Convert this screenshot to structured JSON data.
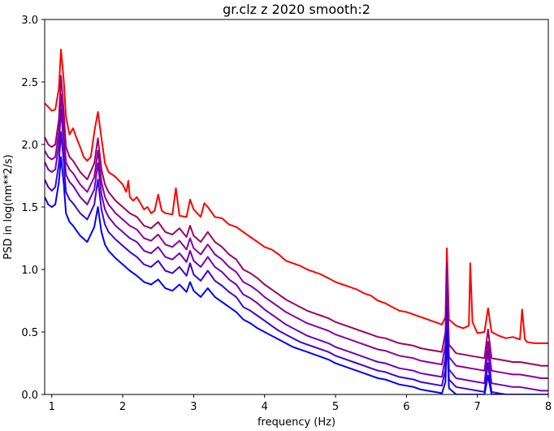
{
  "chart_data": {
    "type": "line",
    "title": "gr.clz z 2020 smooth:2",
    "xlabel": "frequency (Hz)",
    "ylabel": "PSD in log(nm**2/s)",
    "xlim": [
      0.9,
      8.0
    ],
    "ylim": [
      0.0,
      3.0
    ],
    "xticks": [
      1,
      2,
      3,
      4,
      5,
      6,
      7,
      8
    ],
    "xtick_labels": [
      "1",
      "2",
      "3",
      "4",
      "5",
      "6",
      "7",
      "8"
    ],
    "yticks": [
      0.0,
      0.5,
      1.0,
      1.5,
      2.0,
      2.5,
      3.0
    ],
    "ytick_labels": [
      "0.0",
      "0.5",
      "1.0",
      "1.5",
      "2.0",
      "2.5",
      "3.0"
    ],
    "grid": false,
    "legend": "none",
    "series": [
      {
        "color": "#ff0000",
        "x": [
          0.9,
          0.95,
          1.0,
          1.05,
          1.1,
          1.13,
          1.17,
          1.2,
          1.25,
          1.3,
          1.35,
          1.4,
          1.45,
          1.5,
          1.55,
          1.6,
          1.65,
          1.7,
          1.75,
          1.8,
          1.9,
          2.0,
          2.05,
          2.08,
          2.1,
          2.15,
          2.2,
          2.3,
          2.35,
          2.4,
          2.45,
          2.5,
          2.55,
          2.6,
          2.7,
          2.75,
          2.8,
          2.9,
          2.95,
          3.0,
          3.1,
          3.15,
          3.2,
          3.3,
          3.4,
          3.5,
          3.6,
          3.7,
          3.8,
          3.9,
          4.0,
          4.1,
          4.2,
          4.3,
          4.4,
          4.5,
          4.6,
          4.7,
          4.8,
          4.9,
          5.0,
          5.1,
          5.2,
          5.3,
          5.4,
          5.5,
          5.6,
          5.7,
          5.8,
          5.9,
          6.0,
          6.1,
          6.2,
          6.3,
          6.4,
          6.5,
          6.55,
          6.57,
          6.6,
          6.7,
          6.8,
          6.88,
          6.9,
          6.93,
          7.0,
          7.1,
          7.15,
          7.2,
          7.3,
          7.4,
          7.5,
          7.6,
          7.63,
          7.67,
          7.7,
          7.8,
          7.9,
          8.0
        ],
        "y": [
          2.33,
          2.3,
          2.27,
          2.28,
          2.45,
          2.76,
          2.5,
          2.22,
          2.08,
          2.13,
          2.05,
          1.98,
          1.9,
          1.87,
          1.9,
          2.1,
          2.26,
          2.05,
          1.85,
          1.78,
          1.74,
          1.68,
          1.62,
          1.71,
          1.58,
          1.55,
          1.58,
          1.48,
          1.5,
          1.45,
          1.47,
          1.6,
          1.47,
          1.45,
          1.44,
          1.65,
          1.43,
          1.42,
          1.56,
          1.48,
          1.42,
          1.53,
          1.5,
          1.42,
          1.41,
          1.36,
          1.34,
          1.3,
          1.26,
          1.22,
          1.18,
          1.16,
          1.12,
          1.07,
          1.05,
          1.03,
          1.0,
          0.98,
          0.96,
          0.93,
          0.9,
          0.88,
          0.86,
          0.84,
          0.81,
          0.79,
          0.75,
          0.73,
          0.7,
          0.67,
          0.66,
          0.64,
          0.62,
          0.6,
          0.58,
          0.56,
          0.62,
          1.17,
          0.6,
          0.55,
          0.53,
          0.55,
          1.05,
          0.58,
          0.49,
          0.5,
          0.69,
          0.5,
          0.47,
          0.45,
          0.46,
          0.44,
          0.68,
          0.44,
          0.42,
          0.41,
          0.41,
          0.41
        ]
      },
      {
        "color": "#a00060",
        "x": [
          0.9,
          0.95,
          1.0,
          1.05,
          1.1,
          1.13,
          1.17,
          1.2,
          1.25,
          1.3,
          1.4,
          1.5,
          1.6,
          1.65,
          1.7,
          1.75,
          1.8,
          1.9,
          2.0,
          2.1,
          2.2,
          2.3,
          2.4,
          2.5,
          2.6,
          2.7,
          2.8,
          2.9,
          2.95,
          3.0,
          3.1,
          3.2,
          3.3,
          3.4,
          3.5,
          3.6,
          3.7,
          3.8,
          3.9,
          4.0,
          4.1,
          4.2,
          4.3,
          4.4,
          4.5,
          4.6,
          4.7,
          4.8,
          4.9,
          5.0,
          5.1,
          5.2,
          5.3,
          5.4,
          5.5,
          5.6,
          5.7,
          5.8,
          5.9,
          6.0,
          6.1,
          6.2,
          6.3,
          6.4,
          6.5,
          6.55,
          6.57,
          6.6,
          6.7,
          6.8,
          6.9,
          7.0,
          7.1,
          7.15,
          7.2,
          7.3,
          7.4,
          7.5,
          7.6,
          7.7,
          7.8,
          7.9,
          8.0
        ],
        "y": [
          2.06,
          2.0,
          1.98,
          2.0,
          2.2,
          2.55,
          2.25,
          1.98,
          1.9,
          1.87,
          1.78,
          1.72,
          1.85,
          2.05,
          1.8,
          1.68,
          1.62,
          1.55,
          1.5,
          1.45,
          1.42,
          1.35,
          1.33,
          1.38,
          1.3,
          1.28,
          1.33,
          1.26,
          1.35,
          1.27,
          1.22,
          1.3,
          1.22,
          1.18,
          1.12,
          1.08,
          1.0,
          0.97,
          0.93,
          0.88,
          0.84,
          0.8,
          0.76,
          0.73,
          0.7,
          0.67,
          0.65,
          0.63,
          0.61,
          0.58,
          0.56,
          0.54,
          0.52,
          0.5,
          0.48,
          0.46,
          0.45,
          0.43,
          0.41,
          0.4,
          0.39,
          0.37,
          0.36,
          0.35,
          0.34,
          0.5,
          1.05,
          0.4,
          0.33,
          0.32,
          0.31,
          0.3,
          0.29,
          0.52,
          0.29,
          0.28,
          0.27,
          0.26,
          0.26,
          0.25,
          0.24,
          0.23,
          0.23
        ]
      },
      {
        "color": "#8a00a0",
        "x": [
          0.9,
          0.95,
          1.0,
          1.05,
          1.1,
          1.13,
          1.17,
          1.2,
          1.25,
          1.3,
          1.4,
          1.5,
          1.6,
          1.65,
          1.7,
          1.75,
          1.8,
          1.9,
          2.0,
          2.1,
          2.2,
          2.3,
          2.4,
          2.5,
          2.6,
          2.7,
          2.8,
          2.9,
          2.95,
          3.0,
          3.1,
          3.2,
          3.3,
          3.4,
          3.5,
          3.6,
          3.7,
          3.8,
          3.9,
          4.0,
          4.1,
          4.2,
          4.3,
          4.4,
          4.5,
          4.6,
          4.7,
          4.8,
          4.9,
          5.0,
          5.1,
          5.2,
          5.3,
          5.4,
          5.5,
          5.6,
          5.7,
          5.8,
          5.9,
          6.0,
          6.1,
          6.2,
          6.3,
          6.4,
          6.5,
          6.55,
          6.57,
          6.6,
          6.7,
          6.8,
          6.9,
          7.0,
          7.1,
          7.15,
          7.2,
          7.3,
          7.4,
          7.5,
          7.6,
          7.7,
          7.8,
          7.9,
          8.0
        ],
        "y": [
          1.95,
          1.9,
          1.88,
          1.9,
          2.1,
          2.4,
          2.1,
          1.86,
          1.8,
          1.77,
          1.68,
          1.62,
          1.74,
          1.95,
          1.7,
          1.58,
          1.52,
          1.45,
          1.4,
          1.35,
          1.32,
          1.25,
          1.23,
          1.28,
          1.2,
          1.18,
          1.23,
          1.16,
          1.25,
          1.17,
          1.12,
          1.2,
          1.12,
          1.08,
          1.02,
          0.98,
          0.9,
          0.87,
          0.83,
          0.78,
          0.74,
          0.7,
          0.66,
          0.63,
          0.6,
          0.57,
          0.55,
          0.53,
          0.51,
          0.48,
          0.46,
          0.44,
          0.42,
          0.4,
          0.38,
          0.36,
          0.35,
          0.33,
          0.31,
          0.3,
          0.29,
          0.27,
          0.26,
          0.25,
          0.24,
          0.4,
          0.95,
          0.3,
          0.23,
          0.22,
          0.21,
          0.2,
          0.19,
          0.42,
          0.19,
          0.18,
          0.17,
          0.16,
          0.16,
          0.15,
          0.14,
          0.13,
          0.13
        ]
      },
      {
        "color": "#7000b8",
        "x": [
          0.9,
          0.95,
          1.0,
          1.05,
          1.1,
          1.13,
          1.17,
          1.2,
          1.25,
          1.3,
          1.4,
          1.5,
          1.6,
          1.65,
          1.7,
          1.75,
          1.8,
          1.9,
          2.0,
          2.1,
          2.2,
          2.3,
          2.4,
          2.5,
          2.6,
          2.7,
          2.8,
          2.9,
          2.95,
          3.0,
          3.1,
          3.2,
          3.3,
          3.4,
          3.5,
          3.6,
          3.7,
          3.8,
          3.9,
          4.0,
          4.1,
          4.2,
          4.3,
          4.4,
          4.5,
          4.6,
          4.7,
          4.8,
          4.9,
          5.0,
          5.1,
          5.2,
          5.3,
          5.4,
          5.5,
          5.6,
          5.7,
          5.8,
          5.9,
          6.0,
          6.1,
          6.2,
          6.3,
          6.4,
          6.5,
          6.55,
          6.57,
          6.6,
          6.7,
          6.8,
          6.9,
          7.0,
          7.1,
          7.15,
          7.2,
          7.3,
          7.4,
          7.5,
          7.6,
          7.7,
          7.8,
          7.9,
          8.0
        ],
        "y": [
          1.86,
          1.8,
          1.78,
          1.8,
          2.0,
          2.28,
          2.0,
          1.76,
          1.7,
          1.67,
          1.58,
          1.52,
          1.64,
          1.85,
          1.6,
          1.48,
          1.42,
          1.35,
          1.3,
          1.25,
          1.22,
          1.15,
          1.13,
          1.18,
          1.1,
          1.08,
          1.13,
          1.06,
          1.15,
          1.07,
          1.02,
          1.1,
          1.02,
          0.98,
          0.92,
          0.88,
          0.8,
          0.77,
          0.73,
          0.68,
          0.64,
          0.6,
          0.56,
          0.53,
          0.5,
          0.47,
          0.45,
          0.43,
          0.41,
          0.38,
          0.36,
          0.34,
          0.32,
          0.3,
          0.28,
          0.26,
          0.25,
          0.23,
          0.21,
          0.2,
          0.19,
          0.17,
          0.16,
          0.15,
          0.14,
          0.3,
          0.85,
          0.2,
          0.13,
          0.12,
          0.11,
          0.1,
          0.09,
          0.35,
          0.09,
          0.08,
          0.07,
          0.06,
          0.06,
          0.05,
          0.04,
          0.03,
          0.03
        ]
      },
      {
        "color": "#4000d8",
        "x": [
          0.9,
          0.95,
          1.0,
          1.05,
          1.1,
          1.13,
          1.17,
          1.2,
          1.25,
          1.3,
          1.4,
          1.5,
          1.6,
          1.65,
          1.7,
          1.75,
          1.8,
          1.9,
          2.0,
          2.1,
          2.2,
          2.3,
          2.4,
          2.5,
          2.6,
          2.7,
          2.8,
          2.9,
          2.95,
          3.0,
          3.1,
          3.2,
          3.3,
          3.4,
          3.5,
          3.6,
          3.7,
          3.8,
          3.9,
          4.0,
          4.1,
          4.2,
          4.3,
          4.4,
          4.5,
          4.6,
          4.7,
          4.8,
          4.9,
          5.0,
          5.1,
          5.2,
          5.3,
          5.4,
          5.5,
          5.6,
          5.7,
          5.8,
          5.9,
          6.0,
          6.1,
          6.2,
          6.3,
          6.4,
          6.5,
          6.55,
          6.57,
          6.6,
          6.7,
          6.8,
          6.9,
          7.0,
          7.1,
          7.15,
          7.2,
          7.3,
          7.4,
          7.5,
          7.6,
          7.7,
          7.8,
          7.9,
          8.0
        ],
        "y": [
          1.72,
          1.66,
          1.63,
          1.66,
          1.85,
          2.1,
          1.85,
          1.62,
          1.56,
          1.53,
          1.45,
          1.4,
          1.52,
          1.72,
          1.48,
          1.36,
          1.3,
          1.24,
          1.19,
          1.14,
          1.1,
          1.04,
          1.02,
          1.07,
          0.99,
          0.97,
          1.02,
          0.95,
          1.05,
          0.96,
          0.91,
          0.99,
          0.91,
          0.87,
          0.82,
          0.78,
          0.7,
          0.67,
          0.63,
          0.59,
          0.55,
          0.51,
          0.48,
          0.45,
          0.42,
          0.4,
          0.38,
          0.36,
          0.34,
          0.31,
          0.29,
          0.27,
          0.25,
          0.23,
          0.21,
          0.19,
          0.18,
          0.16,
          0.14,
          0.13,
          0.12,
          0.1,
          0.09,
          0.08,
          0.07,
          0.2,
          0.7,
          0.12,
          0.06,
          0.05,
          0.04,
          0.03,
          0.02,
          0.25,
          0.02,
          0.01,
          0.0,
          0.0,
          0.0,
          0.0,
          0.0,
          0.0,
          0.0
        ]
      },
      {
        "color": "#0000ff",
        "x": [
          0.9,
          0.95,
          1.0,
          1.05,
          1.1,
          1.13,
          1.17,
          1.2,
          1.25,
          1.3,
          1.4,
          1.5,
          1.6,
          1.65,
          1.7,
          1.75,
          1.8,
          1.9,
          2.0,
          2.1,
          2.2,
          2.3,
          2.4,
          2.5,
          2.6,
          2.7,
          2.8,
          2.9,
          2.95,
          3.0,
          3.1,
          3.2,
          3.3,
          3.4,
          3.5,
          3.6,
          3.7,
          3.8,
          3.9,
          4.0,
          4.1,
          4.2,
          4.3,
          4.4,
          4.5,
          4.6,
          4.7,
          4.8,
          4.9,
          5.0,
          5.1,
          5.2,
          5.3,
          5.4,
          5.5,
          5.6,
          5.7,
          5.8,
          5.9,
          6.0,
          6.1,
          6.2,
          6.3,
          6.4,
          6.5,
          6.55,
          6.57,
          6.6,
          6.7,
          6.8,
          6.9,
          7.0,
          7.1,
          7.15,
          7.2,
          7.3,
          7.4,
          7.5,
          7.6,
          7.7,
          7.8,
          7.9,
          8.0
        ],
        "y": [
          1.58,
          1.52,
          1.5,
          1.52,
          1.7,
          1.9,
          1.68,
          1.45,
          1.38,
          1.35,
          1.27,
          1.22,
          1.34,
          1.5,
          1.3,
          1.2,
          1.15,
          1.09,
          1.04,
          0.99,
          0.95,
          0.9,
          0.88,
          0.92,
          0.85,
          0.83,
          0.88,
          0.82,
          0.9,
          0.83,
          0.78,
          0.85,
          0.78,
          0.74,
          0.7,
          0.66,
          0.6,
          0.57,
          0.53,
          0.5,
          0.47,
          0.44,
          0.41,
          0.38,
          0.36,
          0.34,
          0.32,
          0.3,
          0.28,
          0.25,
          0.23,
          0.21,
          0.19,
          0.17,
          0.15,
          0.13,
          0.12,
          0.1,
          0.08,
          0.07,
          0.06,
          0.04,
          0.03,
          0.02,
          0.01,
          0.1,
          0.5,
          0.05,
          0.0,
          0.0,
          0.0,
          0.0,
          0.0,
          0.15,
          0.0,
          0.0,
          0.0,
          0.0,
          0.0,
          0.0,
          0.0,
          0.0,
          0.0
        ]
      }
    ]
  }
}
